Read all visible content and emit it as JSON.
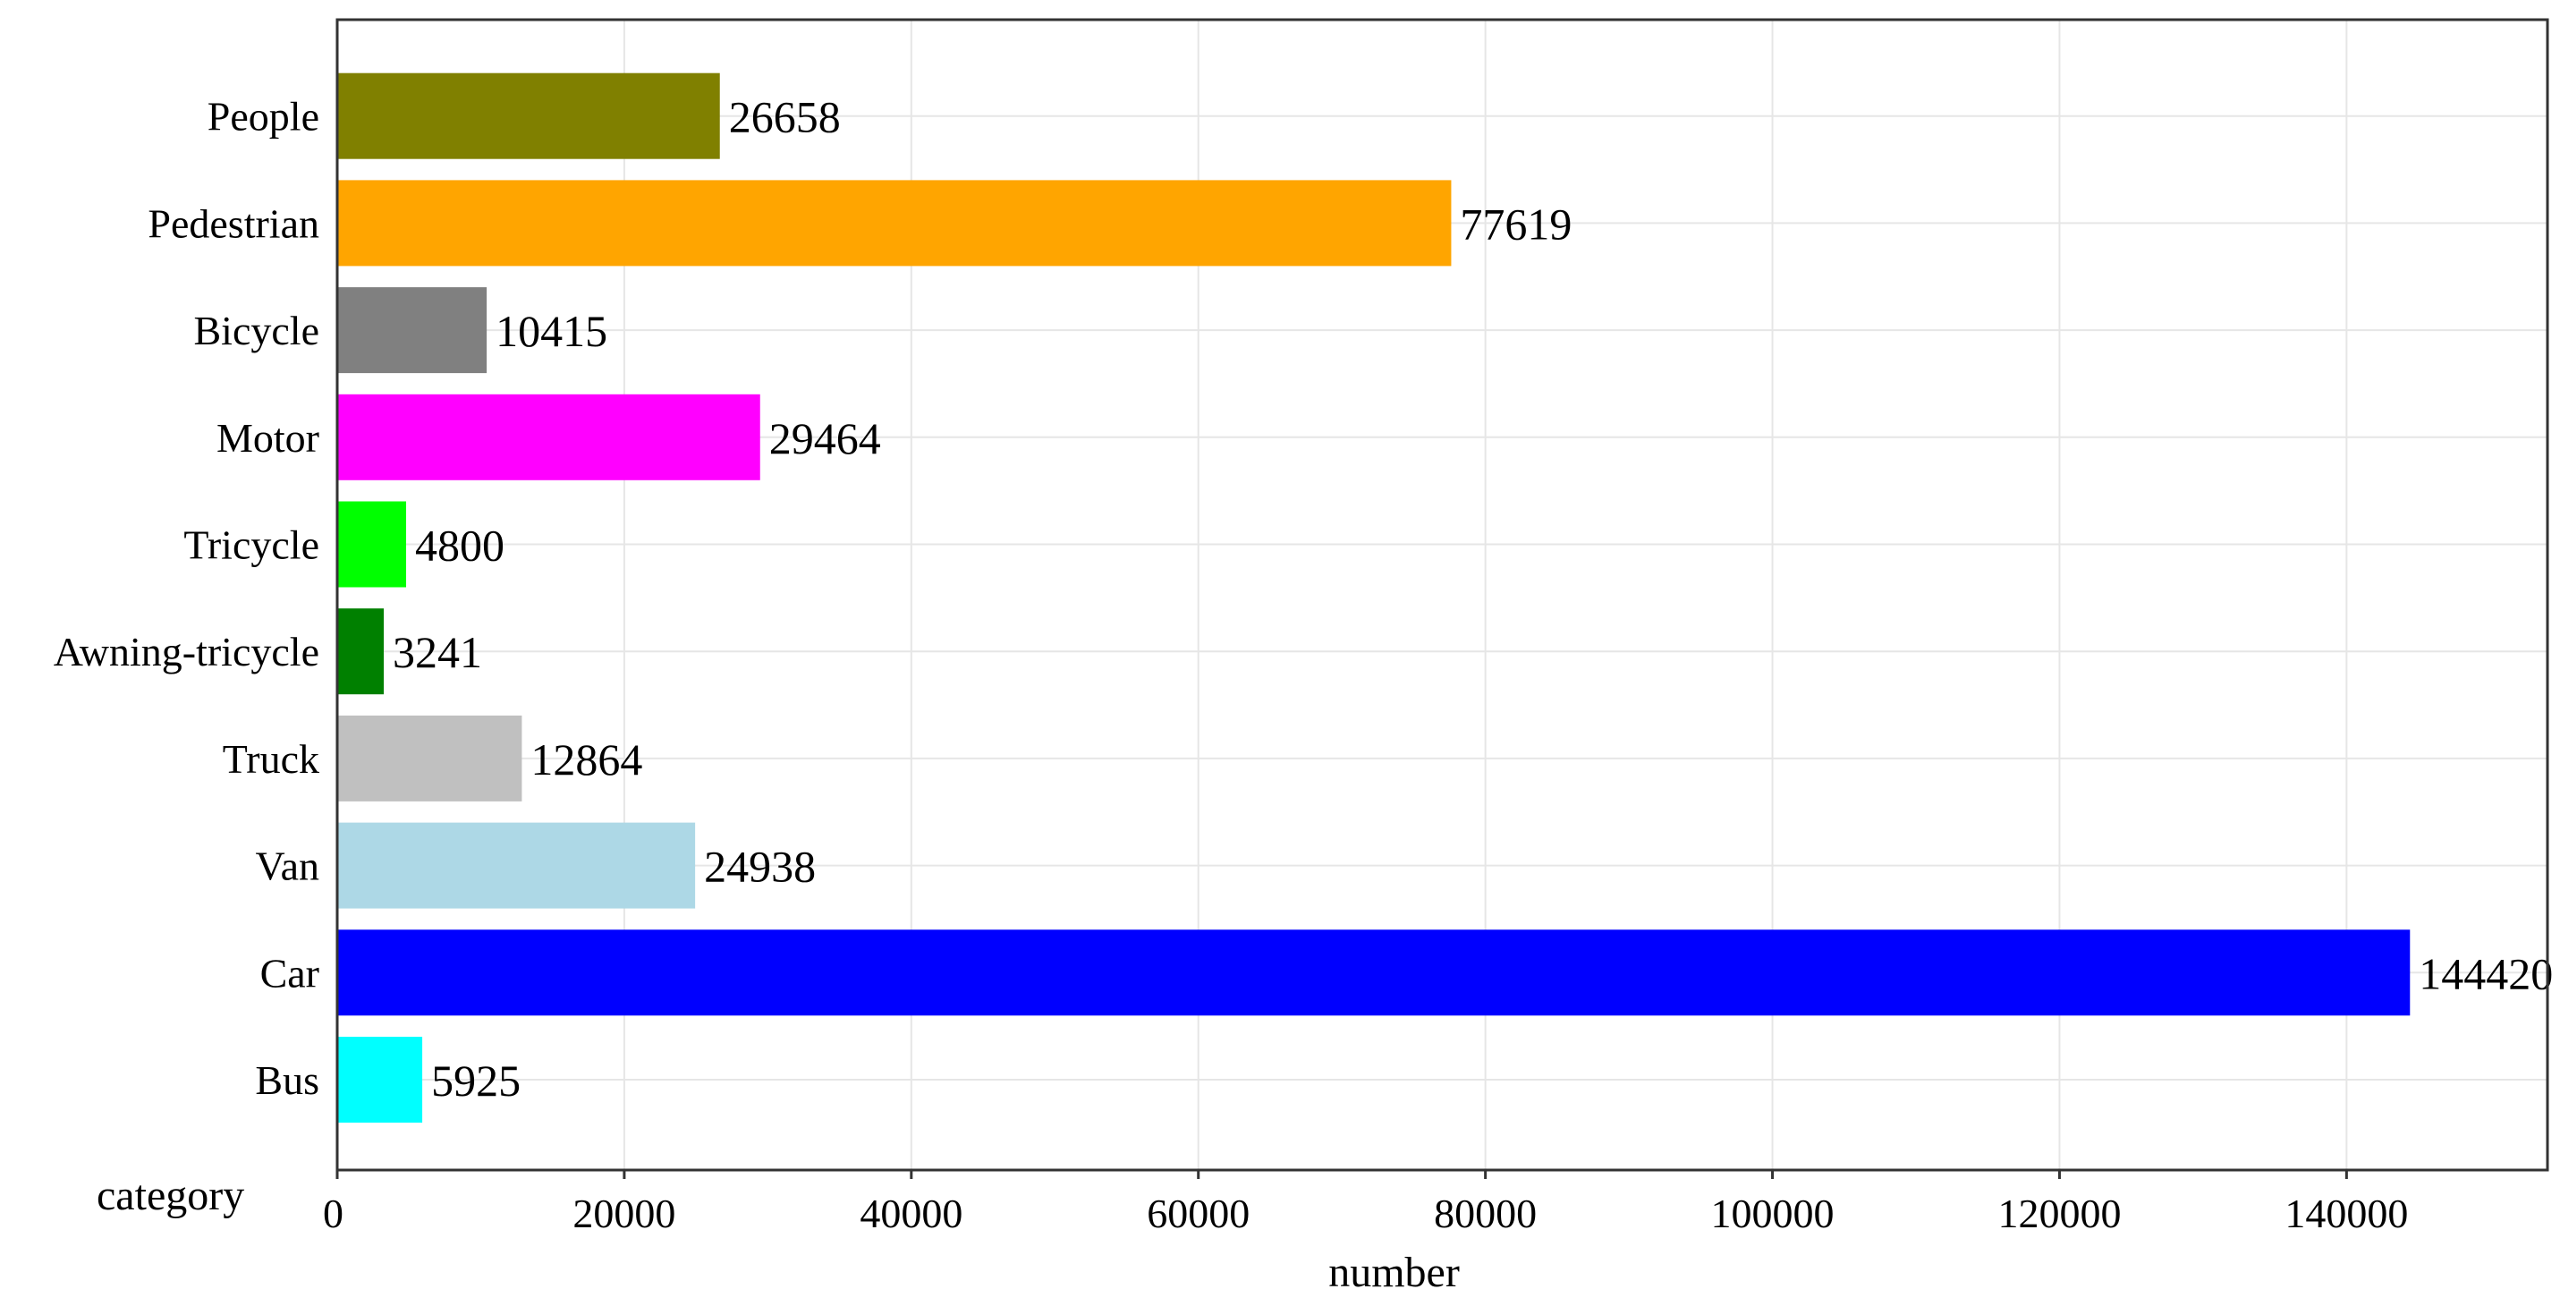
{
  "chart_data": {
    "type": "bar",
    "orientation": "horizontal",
    "categories": [
      "Bus",
      "Car",
      "Van",
      "Truck",
      "Awning-tricycle",
      "Tricycle",
      "Motor",
      "Bicycle",
      "Pedestrian",
      "People"
    ],
    "values": [
      5925,
      144420,
      24938,
      12864,
      3241,
      4800,
      29464,
      10415,
      77619,
      26658
    ],
    "colors": [
      "#00ffff",
      "#0000ff",
      "#add8e6",
      "#c0c0c0",
      "#008000",
      "#00ff00",
      "#ff00ff",
      "#808080",
      "#ffa500",
      "#808000"
    ],
    "data_labels": [
      "5925",
      "144420",
      "24938",
      "12864",
      "3241",
      "4800",
      "29464",
      "10415",
      "77619",
      "26658"
    ],
    "title": "",
    "xlabel": "number",
    "ylabel": "category",
    "xlim": [
      0,
      154000
    ],
    "xticks": [
      0,
      20000,
      40000,
      60000,
      80000,
      100000,
      120000,
      140000
    ],
    "xtick_labels": [
      "0",
      "20000",
      "40000",
      "60000",
      "80000",
      "100000",
      "120000",
      "140000"
    ],
    "grid": true,
    "legend": "none"
  }
}
